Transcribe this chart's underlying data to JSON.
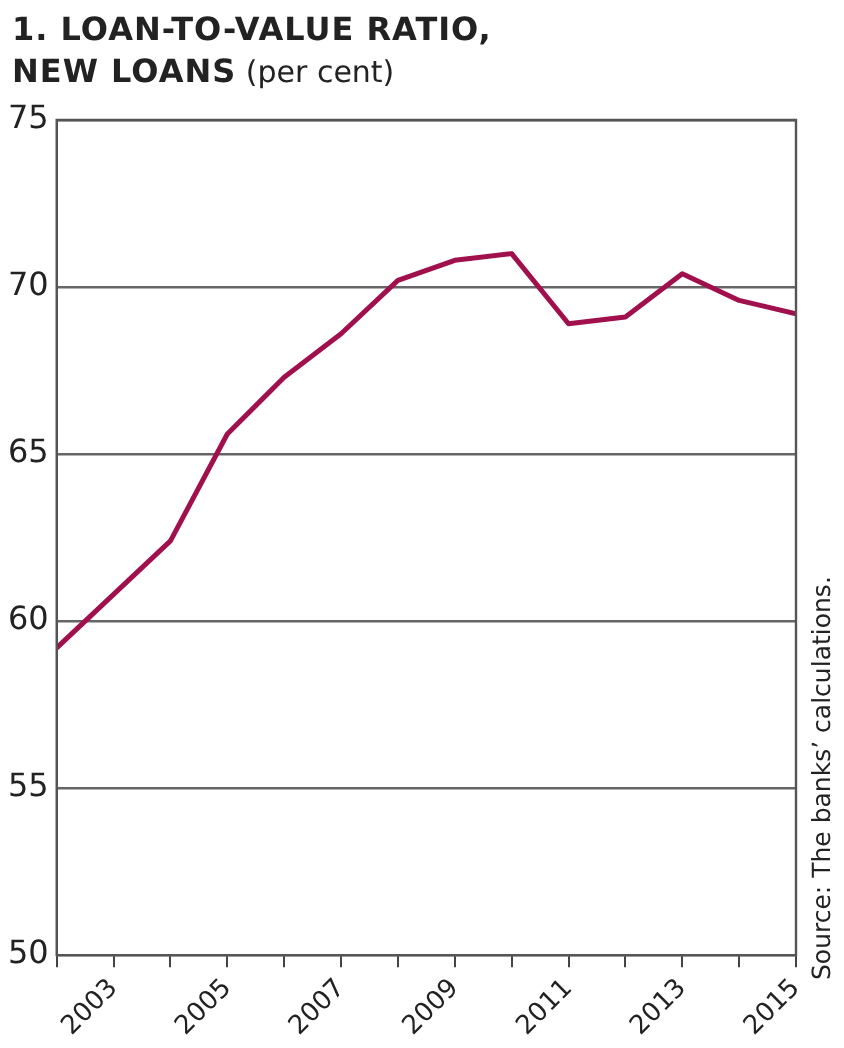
{
  "chart_data": {
    "type": "line",
    "title": "1. LOAN-TO-VALUE RATIO, NEW LOANS",
    "subtitle": "(per cent)",
    "annotations": [
      "Source: The banks’ calculations."
    ],
    "x": [
      2002,
      2003,
      2004,
      2005,
      2006,
      2007,
      2008,
      2009,
      2010,
      2011,
      2012,
      2013,
      2014,
      2015
    ],
    "series": [
      {
        "color": "#a0104c",
        "values": [
          59.2,
          60.8,
          62.4,
          65.6,
          67.3,
          68.6,
          70.2,
          70.8,
          71.0,
          68.9,
          69.1,
          70.4,
          69.6,
          69.2
        ]
      }
    ],
    "xlim": [
      2002,
      2015
    ],
    "xticks": [
      {
        "value": 2002,
        "label": null
      },
      2003,
      {
        "value": 2004,
        "label": null
      },
      2005,
      {
        "value": 2006,
        "label": null
      },
      2007,
      {
        "value": 2008,
        "label": null
      },
      2009,
      {
        "value": 2010,
        "label": null
      },
      2011,
      {
        "value": 2012,
        "label": null
      },
      2013,
      {
        "value": 2014,
        "label": null
      },
      2015
    ],
    "ylim": [
      50,
      75
    ],
    "yticks": [
      50,
      55,
      60,
      65,
      70,
      75
    ],
    "grid": "y",
    "legend": false,
    "marker": "none",
    "line_style": "solid"
  }
}
